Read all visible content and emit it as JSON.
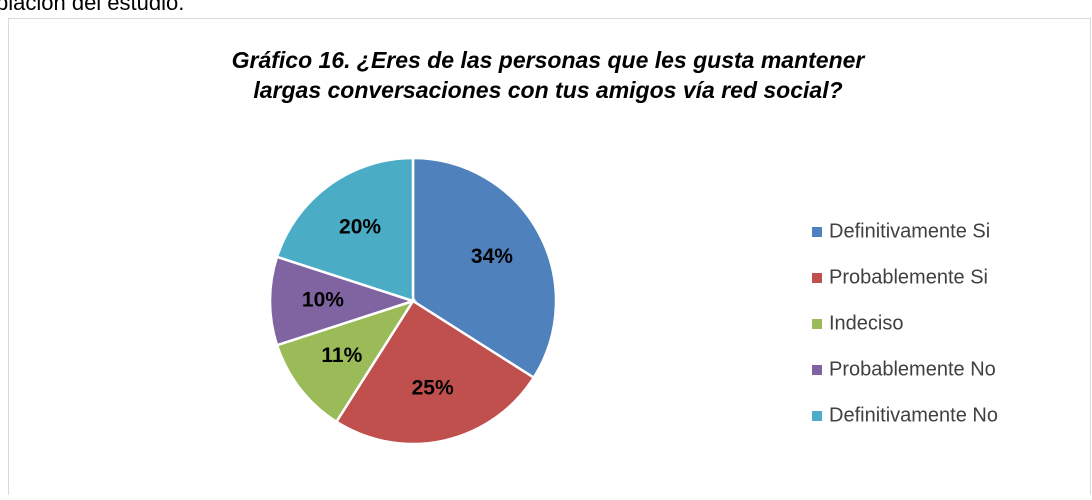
{
  "page_text": "blación del estudio.",
  "chart_data": {
    "type": "pie",
    "title": "Gráfico 16. ¿Eres de las personas que les gusta mantener largas conversaciones con tus amigos vía red social?",
    "categories": [
      "Definitivamente Si",
      "Probablemente Si",
      "Indeciso",
      "Probablemente No",
      "Definitivamente No"
    ],
    "values": [
      34,
      25,
      11,
      10,
      20
    ],
    "value_labels": [
      "34%",
      "25%",
      "11%",
      "10%",
      "20%"
    ],
    "colors": [
      "#4f81bd",
      "#c0504d",
      "#9bbb59",
      "#8064a2",
      "#4bacc6"
    ],
    "legend": "right"
  }
}
